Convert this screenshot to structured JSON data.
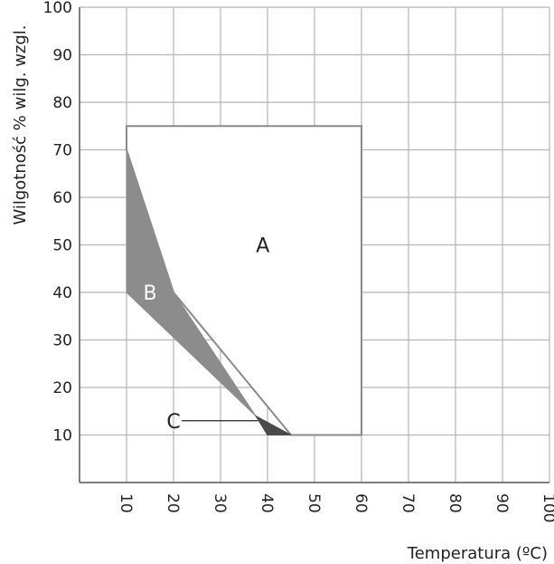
{
  "chart_data": {
    "type": "area",
    "title": "",
    "xlabel": "Temperatura (ºC)",
    "ylabel": "Wilgotność % wilg. wzgl.",
    "xlim": [
      0,
      100
    ],
    "ylim": [
      0,
      100
    ],
    "xticks": [
      "10",
      "20",
      "30",
      "40",
      "50",
      "60",
      "70",
      "80",
      "90",
      "100"
    ],
    "yticks": [
      "10",
      "20",
      "30",
      "40",
      "50",
      "60",
      "70",
      "80",
      "90",
      "100"
    ],
    "grid": true,
    "regions": [
      {
        "label": "A",
        "fill": "#ffffff",
        "stroke": "#8a8a8a",
        "points": [
          [
            10,
            75
          ],
          [
            60,
            75
          ],
          [
            60,
            10
          ],
          [
            45,
            10
          ],
          [
            20,
            40
          ],
          [
            10,
            70
          ]
        ]
      },
      {
        "label": "B",
        "fill": "#8c8c8c",
        "stroke": "#8c8c8c",
        "points": [
          [
            10,
            70
          ],
          [
            20,
            40
          ],
          [
            37.5,
            14
          ],
          [
            10,
            40
          ]
        ]
      },
      {
        "label": "C",
        "fill": "#4a4a4a",
        "stroke": "#4a4a4a",
        "points": [
          [
            37.5,
            14
          ],
          [
            45,
            10
          ],
          [
            40,
            10
          ]
        ]
      }
    ],
    "labels": {
      "A": {
        "text": "A",
        "x": 39,
        "y": 50,
        "color": "#222222"
      },
      "B": {
        "text": "B",
        "x": 15,
        "y": 40,
        "color": "#ffffff"
      },
      "C": {
        "text": "C",
        "x": 20,
        "y": 13,
        "color": "#222222",
        "leader_to": [
          38,
          13
        ]
      }
    },
    "colors": {
      "grid": "#b5b5b5",
      "axis": "#555555"
    }
  }
}
